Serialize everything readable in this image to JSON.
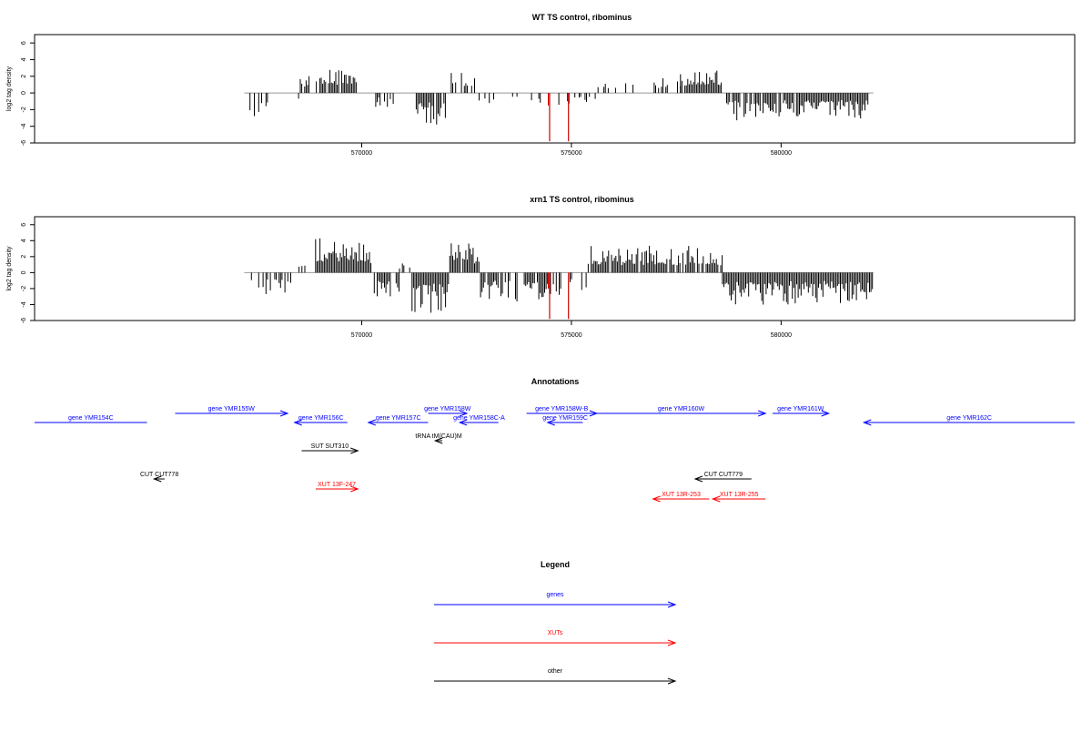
{
  "chart_data": [
    {
      "type": "bar",
      "title": "WT TS control, ribominus",
      "ylabel": "log2 tag density",
      "xlabel": "",
      "ylim": [
        -6,
        7
      ],
      "xlim": [
        562200,
        587000
      ],
      "x_ticks": [
        570000,
        575000,
        580000
      ],
      "y_ticks": [
        -6,
        -4,
        -2,
        0,
        2,
        4,
        6
      ],
      "x_tick_labels": [
        "570000",
        "575000",
        "580000"
      ],
      "y_tick_labels": [
        "-6",
        "-4",
        "-2",
        "0",
        "2",
        "4",
        "6"
      ],
      "baseline": [
        567200,
        582200
      ],
      "series": [
        {
          "color": "#000000",
          "segments": [
            {
              "start": 567300,
              "end": 567800,
              "level": -2.4,
              "density": 0.4
            },
            {
              "start": 567800,
              "end": 568500,
              "level": -1.0,
              "density": 0.15
            },
            {
              "start": 568500,
              "end": 569000,
              "level": 2.0,
              "density": 0.5
            },
            {
              "start": 569000,
              "end": 569900,
              "level": 2.5,
              "density": 0.9
            },
            {
              "start": 570300,
              "end": 570800,
              "level": -1.5,
              "density": 0.3
            },
            {
              "start": 571300,
              "end": 572000,
              "level": -2.8,
              "density": 0.9
            },
            {
              "start": 572100,
              "end": 572700,
              "level": 2.2,
              "density": 0.6
            },
            {
              "start": 572800,
              "end": 574300,
              "level": -0.9,
              "density": 0.2
            },
            {
              "start": 574700,
              "end": 575600,
              "level": -1.2,
              "density": 0.25
            },
            {
              "start": 575600,
              "end": 576800,
              "level": 1.5,
              "density": 0.35
            },
            {
              "start": 576800,
              "end": 577700,
              "level": 1.6,
              "density": 0.4
            },
            {
              "start": 577600,
              "end": 578600,
              "level": 2.2,
              "density": 0.9
            },
            {
              "start": 578700,
              "end": 582100,
              "level": -2.4,
              "density": 0.9
            }
          ]
        },
        {
          "color": "#cc0000",
          "bars": [
            {
              "x": 574450,
              "value": -1.5
            },
            {
              "x": 574480,
              "value": -5.8
            },
            {
              "x": 574930,
              "value": -5.8
            }
          ]
        }
      ]
    },
    {
      "type": "bar",
      "title": "xrn1 TS control, ribominus",
      "ylabel": "log2 tag density",
      "xlabel": "",
      "ylim": [
        -6,
        7
      ],
      "xlim": [
        562200,
        587000
      ],
      "x_ticks": [
        570000,
        575000,
        580000
      ],
      "y_ticks": [
        -6,
        -4,
        -2,
        0,
        2,
        4,
        6
      ],
      "x_tick_labels": [
        "570000",
        "575000",
        "580000"
      ],
      "y_tick_labels": [
        "-6",
        "-4",
        "-2",
        "0",
        "2",
        "4",
        "6"
      ],
      "baseline": [
        567200,
        582200
      ],
      "series": [
        {
          "color": "#000000",
          "segments": [
            {
              "start": 567300,
              "end": 568500,
              "level": -2.3,
              "density": 0.5
            },
            {
              "start": 568400,
              "end": 568900,
              "level": 1.2,
              "density": 0.3
            },
            {
              "start": 568900,
              "end": 570250,
              "level": 3.2,
              "density": 1.0
            },
            {
              "start": 570300,
              "end": 570900,
              "level": -2.5,
              "density": 0.8
            },
            {
              "start": 570900,
              "end": 571200,
              "level": 1.2,
              "density": 0.3
            },
            {
              "start": 571200,
              "end": 572100,
              "level": -3.8,
              "density": 1.0
            },
            {
              "start": 572100,
              "end": 572800,
              "level": 3.0,
              "density": 0.9
            },
            {
              "start": 572800,
              "end": 574800,
              "level": -2.6,
              "density": 0.7
            },
            {
              "start": 574900,
              "end": 575400,
              "level": -1.8,
              "density": 0.4
            },
            {
              "start": 575400,
              "end": 578600,
              "level": 2.5,
              "density": 0.9
            },
            {
              "start": 578600,
              "end": 582200,
              "level": -3.0,
              "density": 1.0
            }
          ]
        },
        {
          "color": "#cc0000",
          "bars": [
            {
              "x": 574450,
              "value": -2.0
            },
            {
              "x": 574480,
              "value": -5.8
            },
            {
              "x": 574930,
              "value": -5.8
            }
          ]
        }
      ]
    }
  ],
  "annotations": {
    "title": "Annotations",
    "features": [
      {
        "label": "gene YMR154C",
        "color": "#0000ff",
        "start": 562200,
        "end": 563800,
        "dir": "none",
        "row": 2
      },
      {
        "label": "gene YMR155W",
        "color": "#0000ff",
        "start": 564200,
        "end": 565800,
        "dir": "right",
        "row": 1
      },
      {
        "label": "gene YMR156C",
        "color": "#0000ff",
        "start": 565900,
        "end": 566650,
        "dir": "left",
        "row": 2
      },
      {
        "label": "gene YMR157C",
        "color": "#0000ff",
        "start": 566950,
        "end": 567800,
        "dir": "left",
        "row": 2
      },
      {
        "label": "gene YMR158W",
        "color": "#0000ff",
        "start": 567800,
        "end": 568350,
        "dir": "right",
        "row": 1
      },
      {
        "label": "gene YMR158C-A",
        "color": "#0000ff",
        "start": 568250,
        "end": 568800,
        "dir": "left",
        "row": 2
      },
      {
        "label": "gene YMR158W-B",
        "color": "#0000ff",
        "start": 569200,
        "end": 570200,
        "dir": "right",
        "row": 1
      },
      {
        "label": "gene YMR159C",
        "color": "#0000ff",
        "start": 569500,
        "end": 570000,
        "dir": "left",
        "row": 2
      },
      {
        "label": "gene YMR160W",
        "color": "#0000ff",
        "start": 570200,
        "end": 572600,
        "dir": "right",
        "row": 1
      },
      {
        "label": "gene YMR161W",
        "color": "#0000ff",
        "start": 572700,
        "end": 573500,
        "dir": "right",
        "row": 1
      },
      {
        "label": "gene YMR162C",
        "color": "#0000ff",
        "start": 574000,
        "end": 577000,
        "dir": "left",
        "row": 2
      },
      {
        "label": "SUT SUT310",
        "color": "#000000",
        "start": 566000,
        "end": 566800,
        "dir": "right",
        "row": 4
      },
      {
        "label": "tRNA tM(CAU)M",
        "color": "#000000",
        "start": 567900,
        "end": 568000,
        "dir": "left",
        "row": 3
      },
      {
        "label": "CUT CUT778",
        "color": "#000000",
        "start": 563900,
        "end": 564050,
        "dir": "left",
        "row": 5
      },
      {
        "label": "CUT CUT779",
        "color": "#000000",
        "start": 571600,
        "end": 572400,
        "dir": "left",
        "row": 5
      },
      {
        "label": "XUT 13F-247",
        "color": "#ff0000",
        "start": 566200,
        "end": 566800,
        "dir": "right",
        "row": 6
      },
      {
        "label": "XUT 13R-253",
        "color": "#ff0000",
        "start": 571000,
        "end": 571800,
        "dir": "left",
        "row": 7
      },
      {
        "label": "XUT 13R-255",
        "color": "#ff0000",
        "start": 571850,
        "end": 572600,
        "dir": "left",
        "row": 7
      }
    ]
  },
  "legend": {
    "title": "Legend",
    "items": [
      {
        "label": "genes",
        "color": "#0000ff"
      },
      {
        "label": "XUTs",
        "color": "#ff0000"
      },
      {
        "label": "other",
        "color": "#000000"
      }
    ]
  }
}
